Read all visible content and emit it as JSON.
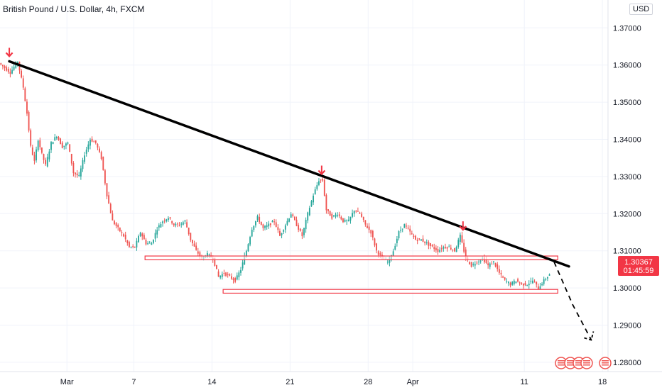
{
  "header": {
    "title": "British Pound / U.S. Dollar, 4h, FXCM",
    "currency": "USD"
  },
  "price_tag": {
    "price": "1.30367",
    "countdown": "01:45:59"
  },
  "colors": {
    "up": "#26a69a",
    "down": "#ef5350",
    "trendline": "#000000",
    "zone_stroke": "#f23645",
    "zone_fill": "#ffffff",
    "arrow": "#f23645",
    "price_tag": "#f23645"
  },
  "chart_data": {
    "type": "candlestick",
    "title": "",
    "xlabel": "",
    "ylabel": "",
    "ylim": [
      1.2775,
      1.3775
    ],
    "x_range": [
      "2022-02-23T00:00",
      "2022-04-18T12:00"
    ],
    "y_ticks": [
      "1.28000",
      "1.29000",
      "1.30000",
      "1.31000",
      "1.32000",
      "1.33000",
      "1.34000",
      "1.35000",
      "1.36000",
      "1.37000"
    ],
    "x_ticks": [
      {
        "label": "Mar",
        "date": "2022-03-01"
      },
      {
        "label": "7",
        "date": "2022-03-07"
      },
      {
        "label": "14",
        "date": "2022-03-14"
      },
      {
        "label": "21",
        "date": "2022-03-21"
      },
      {
        "label": "28",
        "date": "2022-03-28"
      },
      {
        "label": "Apr",
        "date": "2022-04-01"
      },
      {
        "label": "11",
        "date": "2022-04-11"
      },
      {
        "label": "18",
        "date": "2022-04-18"
      }
    ],
    "price_path": [
      [
        "2022-02-23T00:00",
        1.3605
      ],
      [
        "2022-02-24T00:00",
        1.358
      ],
      [
        "2022-02-24T16:00",
        1.361
      ],
      [
        "2022-02-25T04:00",
        1.354
      ],
      [
        "2022-02-25T12:00",
        1.347
      ],
      [
        "2022-02-25T20:00",
        1.338
      ],
      [
        "2022-02-26T04:00",
        1.334
      ],
      [
        "2022-02-26T12:00",
        1.34
      ],
      [
        "2022-02-26T20:00",
        1.336
      ],
      [
        "2022-02-27T04:00",
        1.333
      ],
      [
        "2022-02-27T16:00",
        1.339
      ],
      [
        "2022-02-28T04:00",
        1.341
      ],
      [
        "2022-02-28T16:00",
        1.338
      ],
      [
        "2022-03-01T04:00",
        1.339
      ],
      [
        "2022-03-01T16:00",
        1.331
      ],
      [
        "2022-03-02T04:00",
        1.33
      ],
      [
        "2022-03-02T16:00",
        1.336
      ],
      [
        "2022-03-03T04:00",
        1.34
      ],
      [
        "2022-03-03T16:00",
        1.339
      ],
      [
        "2022-03-04T04:00",
        1.335
      ],
      [
        "2022-03-04T16:00",
        1.325
      ],
      [
        "2022-03-05T04:00",
        1.318
      ],
      [
        "2022-03-05T16:00",
        1.316
      ],
      [
        "2022-03-06T04:00",
        1.314
      ],
      [
        "2022-03-06T16:00",
        1.311
      ],
      [
        "2022-03-07T04:00",
        1.311
      ],
      [
        "2022-03-07T16:00",
        1.315
      ],
      [
        "2022-03-08T04:00",
        1.312
      ],
      [
        "2022-03-08T16:00",
        1.312
      ],
      [
        "2022-03-09T04:00",
        1.316
      ],
      [
        "2022-03-09T16:00",
        1.318
      ],
      [
        "2022-03-10T04:00",
        1.319
      ],
      [
        "2022-03-10T16:00",
        1.317
      ],
      [
        "2022-03-11T04:00",
        1.317
      ],
      [
        "2022-03-11T16:00",
        1.318
      ],
      [
        "2022-03-12T04:00",
        1.313
      ],
      [
        "2022-03-12T16:00",
        1.31
      ],
      [
        "2022-03-13T04:00",
        1.308
      ],
      [
        "2022-03-13T16:00",
        1.309
      ],
      [
        "2022-03-14T04:00",
        1.308
      ],
      [
        "2022-03-14T16:00",
        1.303
      ],
      [
        "2022-03-15T04:00",
        1.304
      ],
      [
        "2022-03-15T16:00",
        1.303
      ],
      [
        "2022-03-16T04:00",
        1.302
      ],
      [
        "2022-03-16T16:00",
        1.305
      ],
      [
        "2022-03-17T04:00",
        1.31
      ],
      [
        "2022-03-17T16:00",
        1.316
      ],
      [
        "2022-03-18T04:00",
        1.319
      ],
      [
        "2022-03-18T16:00",
        1.316
      ],
      [
        "2022-03-19T04:00",
        1.317
      ],
      [
        "2022-03-19T16:00",
        1.318
      ],
      [
        "2022-03-20T04:00",
        1.314
      ],
      [
        "2022-03-20T16:00",
        1.317
      ],
      [
        "2022-03-21T04:00",
        1.32
      ],
      [
        "2022-03-21T16:00",
        1.317
      ],
      [
        "2022-03-22T04:00",
        1.314
      ],
      [
        "2022-03-22T16:00",
        1.32
      ],
      [
        "2022-03-23T04:00",
        1.325
      ],
      [
        "2022-03-23T16:00",
        1.329
      ],
      [
        "2022-03-24T00:00",
        1.329
      ],
      [
        "2022-03-24T08:00",
        1.321
      ],
      [
        "2022-03-24T20:00",
        1.319
      ],
      [
        "2022-03-25T08:00",
        1.32
      ],
      [
        "2022-03-25T20:00",
        1.318
      ],
      [
        "2022-03-26T08:00",
        1.318
      ],
      [
        "2022-03-26T20:00",
        1.321
      ],
      [
        "2022-03-27T08:00",
        1.32
      ],
      [
        "2022-03-27T20:00",
        1.317
      ],
      [
        "2022-03-28T08:00",
        1.315
      ],
      [
        "2022-03-28T20:00",
        1.31
      ],
      [
        "2022-03-29T08:00",
        1.308
      ],
      [
        "2022-03-29T20:00",
        1.307
      ],
      [
        "2022-03-30T08:00",
        1.31
      ],
      [
        "2022-03-30T20:00",
        1.315
      ],
      [
        "2022-03-31T08:00",
        1.317
      ],
      [
        "2022-03-31T20:00",
        1.315
      ],
      [
        "2022-04-01T08:00",
        1.313
      ],
      [
        "2022-04-01T20:00",
        1.313
      ],
      [
        "2022-04-02T08:00",
        1.312
      ],
      [
        "2022-04-02T20:00",
        1.311
      ],
      [
        "2022-04-03T08:00",
        1.31
      ],
      [
        "2022-04-03T20:00",
        1.311
      ],
      [
        "2022-04-04T08:00",
        1.311
      ],
      [
        "2022-04-04T20:00",
        1.31
      ],
      [
        "2022-04-05T08:00",
        1.314
      ],
      [
        "2022-04-05T20:00",
        1.308
      ],
      [
        "2022-04-06T08:00",
        1.306
      ],
      [
        "2022-04-06T20:00",
        1.307
      ],
      [
        "2022-04-07T08:00",
        1.308
      ],
      [
        "2022-04-07T20:00",
        1.306
      ],
      [
        "2022-04-08T08:00",
        1.307
      ],
      [
        "2022-04-08T20:00",
        1.304
      ],
      [
        "2022-04-09T08:00",
        1.302
      ],
      [
        "2022-04-09T20:00",
        1.301
      ],
      [
        "2022-04-10T08:00",
        1.302
      ],
      [
        "2022-04-10T20:00",
        1.301
      ],
      [
        "2022-04-11T08:00",
        1.301
      ],
      [
        "2022-04-11T20:00",
        1.302
      ],
      [
        "2022-04-12T08:00",
        1.3
      ],
      [
        "2022-04-12T20:00",
        1.302
      ],
      [
        "2022-04-13T08:00",
        1.3037
      ]
    ],
    "annotations": {
      "trendline": [
        [
          "2022-02-23T20:00",
          1.361
        ],
        [
          "2022-04-15T00:00",
          1.3058
        ]
      ],
      "projection": [
        [
          "2022-04-13T16:00",
          1.307
        ],
        [
          "2022-04-15T08:00",
          1.2955
        ],
        [
          "2022-04-17T00:00",
          1.286
        ]
      ],
      "zones": [
        {
          "from": "2022-03-08T00:00",
          "to": "2022-04-14T00:00",
          "top": 1.3086,
          "bottom": 1.3076
        },
        {
          "from": "2022-03-15T00:00",
          "to": "2022-04-14T00:00",
          "top": 1.2996,
          "bottom": 1.2986
        }
      ],
      "arrows": [
        {
          "date": "2022-02-23T20:00",
          "price": 1.3612
        },
        {
          "date": "2022-03-23T20:00",
          "price": 1.3295
        },
        {
          "date": "2022-04-05T12:00",
          "price": 1.3145
        }
      ]
    }
  }
}
